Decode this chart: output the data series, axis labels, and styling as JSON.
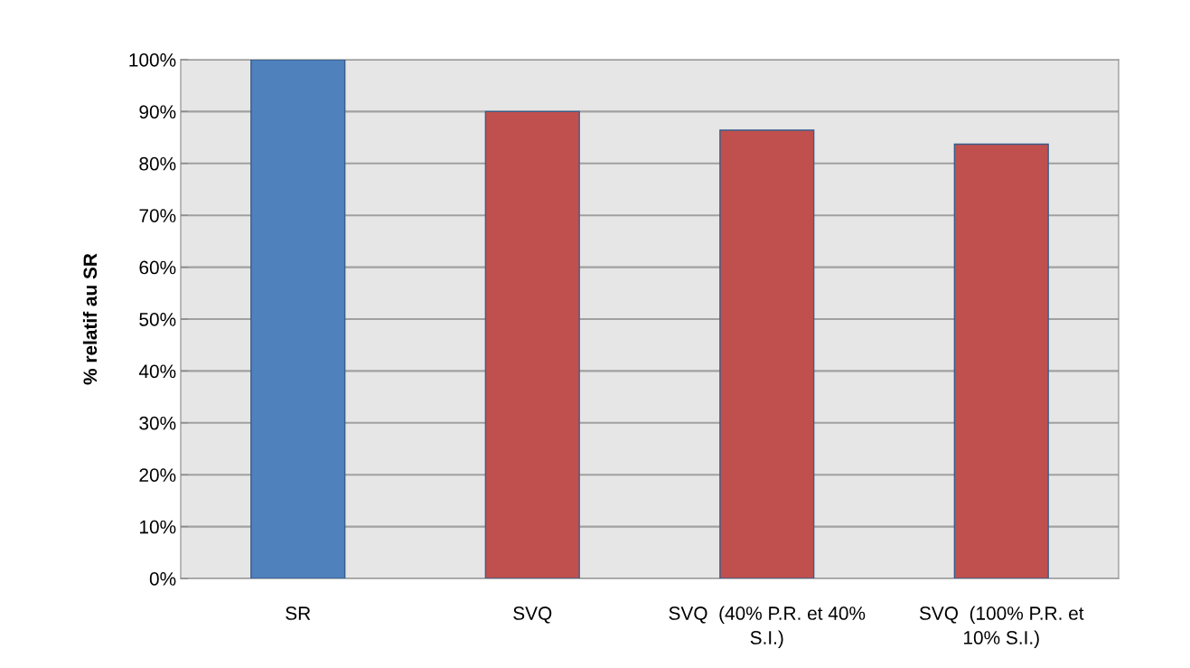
{
  "chart_data": {
    "type": "bar",
    "ylabel": "% relatif au SR",
    "categories": [
      "SR",
      "SVQ",
      "SVQ  (40% P.R. et 40%\nS.I.)",
      "SVQ  (100% P.R. et\n10% S.I.)"
    ],
    "values": [
      100,
      90,
      86.4,
      83.7
    ],
    "colors": [
      "#4f81bd",
      "#c0504d",
      "#c0504d",
      "#c0504d"
    ],
    "ylim": [
      0,
      100
    ],
    "yticks": [
      {
        "value": 0,
        "label": "0%"
      },
      {
        "value": 10,
        "label": "10%"
      },
      {
        "value": 20,
        "label": "20%"
      },
      {
        "value": 30,
        "label": "30%"
      },
      {
        "value": 40,
        "label": "40%"
      },
      {
        "value": 50,
        "label": "50%"
      },
      {
        "value": 60,
        "label": "60%"
      },
      {
        "value": 70,
        "label": "70%"
      },
      {
        "value": 80,
        "label": "80%"
      },
      {
        "value": 90,
        "label": "90%"
      },
      {
        "value": 100,
        "label": "100%"
      }
    ],
    "grid": "y"
  }
}
